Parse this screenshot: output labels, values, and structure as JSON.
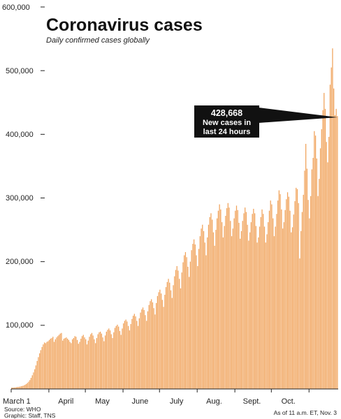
{
  "chart_data": {
    "type": "bar",
    "title": "Coronavirus cases",
    "subtitle": "Daily confirmed cases globally",
    "ylim": [
      0,
      600000
    ],
    "yticks": [
      {
        "value": 100000,
        "label": "100,000"
      },
      {
        "value": 200000,
        "label": "200,000"
      },
      {
        "value": 300000,
        "label": "300,000"
      },
      {
        "value": 400000,
        "label": "400,000"
      },
      {
        "value": 500000,
        "label": "500,000"
      },
      {
        "value": 600000,
        "label": "600,000"
      }
    ],
    "x_start": "2020-03-01",
    "x_month_labels": [
      {
        "label": "March 1",
        "date": "2020-03-01"
      },
      {
        "label": "April",
        "date": "2020-04-15"
      },
      {
        "label": "May",
        "date": "2020-05-15"
      },
      {
        "label": "June",
        "date": "2020-06-15"
      },
      {
        "label": "July",
        "date": "2020-07-15"
      },
      {
        "label": "Aug.",
        "date": "2020-08-15"
      },
      {
        "label": "Sept.",
        "date": "2020-09-15"
      },
      {
        "label": "Oct.",
        "date": "2020-10-15"
      }
    ],
    "grid": false,
    "bar_color": "#f0a25a",
    "values": [
      2000,
      2100,
      2300,
      2500,
      2800,
      3100,
      3400,
      3800,
      4300,
      4800,
      5500,
      6500,
      7800,
      9400,
      11500,
      14000,
      17500,
      21500,
      26000,
      31000,
      37000,
      44000,
      50000,
      56000,
      61000,
      66000,
      70000,
      73000,
      72000,
      74000,
      75000,
      77000,
      79000,
      80000,
      82000,
      74000,
      78000,
      81000,
      83000,
      85000,
      87000,
      88000,
      76000,
      79000,
      80000,
      81000,
      79000,
      77000,
      74000,
      72000,
      78000,
      80000,
      83000,
      82000,
      77000,
      71000,
      74000,
      79000,
      83000,
      85000,
      81000,
      78000,
      70000,
      76000,
      82000,
      86000,
      88000,
      84000,
      78000,
      72000,
      80000,
      86000,
      89000,
      90000,
      87000,
      81000,
      75000,
      84000,
      90000,
      93000,
      95000,
      92000,
      86000,
      80000,
      89000,
      96000,
      99000,
      101000,
      98000,
      91000,
      85000,
      95000,
      103000,
      107000,
      109000,
      106000,
      99000,
      92000,
      102000,
      110000,
      115000,
      118000,
      114000,
      107000,
      99000,
      111000,
      120000,
      125000,
      128000,
      124000,
      116000,
      107000,
      122000,
      132000,
      138000,
      141000,
      136000,
      127000,
      117000,
      135000,
      146000,
      152000,
      156000,
      150000,
      140000,
      129000,
      148000,
      160000,
      168000,
      173000,
      167000,
      155000,
      143000,
      163000,
      177000,
      187000,
      193000,
      186000,
      173000,
      158000,
      183000,
      199000,
      210000,
      215000,
      207000,
      192000,
      176000,
      200000,
      218000,
      228000,
      235000,
      227000,
      210000,
      193000,
      220000,
      240000,
      252000,
      258000,
      248000,
      230000,
      210000,
      238000,
      258000,
      270000,
      276000,
      266000,
      246000,
      225000,
      250000,
      268000,
      280000,
      290000,
      282000,
      262000,
      238000,
      256000,
      272000,
      284000,
      292000,
      285000,
      264000,
      240000,
      252000,
      268000,
      280000,
      288000,
      281000,
      261000,
      236000,
      248000,
      264000,
      276000,
      285000,
      278000,
      258000,
      233000,
      246000,
      262000,
      275000,
      283000,
      276000,
      256000,
      230000,
      238000,
      255000,
      270000,
      282000,
      275000,
      255000,
      230000,
      243000,
      262000,
      280000,
      296000,
      290000,
      268000,
      240000,
      255000,
      275000,
      296000,
      312000,
      306000,
      282000,
      252000,
      262000,
      281000,
      298000,
      309000,
      302000,
      280000,
      246000,
      254000,
      274000,
      295000,
      316000,
      314000,
      292000,
      205000,
      248000,
      278000,
      305000,
      343000,
      385000,
      346000,
      297000,
      268000,
      303000,
      345000,
      363000,
      405000,
      398000,
      362000,
      303000,
      330000,
      378000,
      408000,
      438000,
      465000,
      440000,
      388000,
      356000,
      396000,
      478000,
      505000,
      535000,
      472000,
      430000,
      440000,
      428668
    ]
  },
  "callout": {
    "number": "428,668",
    "line1": "New cases in",
    "line2": "last 24 hours"
  },
  "footer": {
    "source": "Source: WHO",
    "graphic": "Graphic: Staff, TNS",
    "asof": "As of 11 a.m. ET, Nov. 3"
  },
  "colors": {
    "bar": "#f0a25a",
    "axis": "#222222",
    "callout_bg": "#111111"
  }
}
